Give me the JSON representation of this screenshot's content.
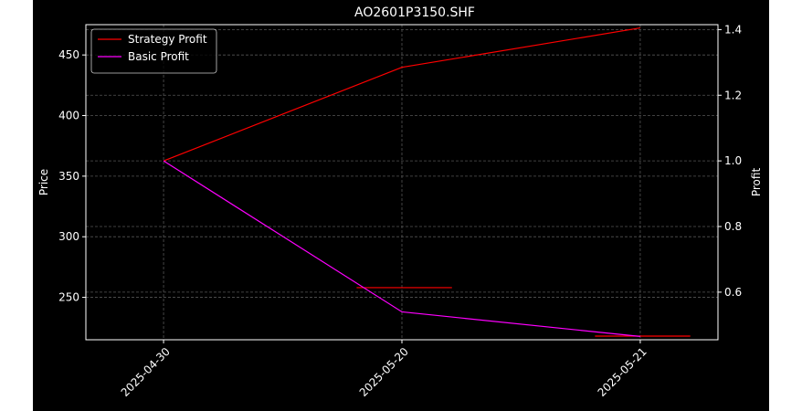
{
  "chart_data": {
    "type": "line",
    "title": "AO2601P3150.SHF",
    "ylabel": "Price",
    "y2label": "Profit",
    "categories": [
      "2025-04-30",
      "2025-05-20",
      "2025-05-21"
    ],
    "ylim": [
      215,
      475
    ],
    "y2lim": [
      0.455,
      1.415
    ],
    "yticks": [
      250,
      300,
      350,
      400,
      450
    ],
    "y2ticks": [
      0.6,
      0.8,
      1.0,
      1.2,
      1.4
    ],
    "grid": true,
    "legend": "top-left",
    "series": [
      {
        "name": "Strategy Profit",
        "axis": "right",
        "color": "#ff0000",
        "values": [
          1.0,
          1.285,
          1.405
        ]
      },
      {
        "name": "Basic Profit",
        "axis": "right",
        "color": "#ff00ff",
        "values": [
          1.0,
          0.54,
          0.465
        ]
      }
    ],
    "horizontal_markers": [
      {
        "axis": "left",
        "color": "#ff0000",
        "value": 258,
        "x_from": 0.81,
        "x_to": 1.21
      },
      {
        "axis": "left",
        "color": "#ff0000",
        "value": 218,
        "x_from": 1.81,
        "x_to": 2.21
      }
    ],
    "background": "#000000",
    "grid_color": "#555555",
    "text_color": "#ffffff"
  }
}
